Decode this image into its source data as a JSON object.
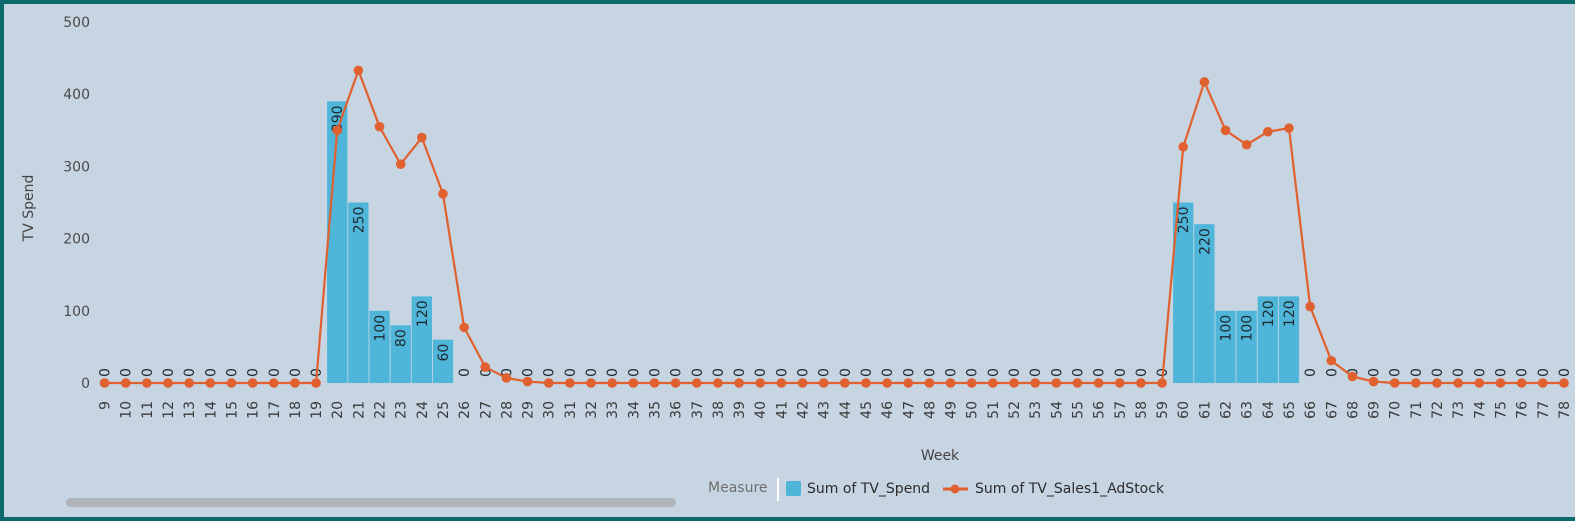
{
  "chart_data": {
    "type": "bar",
    "xlabel": "Week",
    "ylabel": "TV Spend",
    "ylim": [
      0,
      500
    ],
    "yticks": [
      0,
      100,
      200,
      300,
      400,
      500
    ],
    "grid": false,
    "legend_placement": "bottom-center",
    "legend_title": "Measure",
    "categories": [
      "9",
      "10",
      "11",
      "12",
      "13",
      "14",
      "15",
      "16",
      "17",
      "18",
      "19",
      "20",
      "21",
      "22",
      "23",
      "24",
      "25",
      "26",
      "27",
      "28",
      "29",
      "30",
      "31",
      "32",
      "33",
      "34",
      "35",
      "36",
      "37",
      "38",
      "39",
      "40",
      "41",
      "42",
      "43",
      "44",
      "45",
      "46",
      "47",
      "48",
      "49",
      "50",
      "51",
      "52",
      "53",
      "54",
      "55",
      "56",
      "57",
      "58",
      "59",
      "60",
      "61",
      "62",
      "63",
      "64",
      "65",
      "66",
      "67",
      "68",
      "69",
      "70",
      "71",
      "72",
      "73",
      "74",
      "75",
      "76",
      "77",
      "78"
    ],
    "series": [
      {
        "name": "Sum of TV_Spend",
        "type": "bar",
        "color": "#4fb6d9",
        "values": [
          0,
          0,
          0,
          0,
          0,
          0,
          0,
          0,
          0,
          0,
          0,
          390,
          250,
          100,
          80,
          120,
          60,
          0,
          0,
          0,
          0,
          0,
          0,
          0,
          0,
          0,
          0,
          0,
          0,
          0,
          0,
          0,
          0,
          0,
          0,
          0,
          0,
          0,
          0,
          0,
          0,
          0,
          0,
          0,
          0,
          0,
          0,
          0,
          0,
          0,
          0,
          250,
          220,
          100,
          100,
          120,
          120,
          0,
          0,
          0,
          0,
          0,
          0,
          0,
          0,
          0,
          0,
          0,
          0,
          0
        ]
      },
      {
        "name": "Sum of TV_Sales1_AdStock",
        "type": "line",
        "color": "#e1602f",
        "values": [
          0,
          0,
          0,
          0,
          0,
          0,
          0,
          0,
          0,
          0,
          0,
          350,
          433,
          355,
          303,
          340,
          262,
          77,
          22,
          7,
          2,
          0,
          0,
          0,
          0,
          0,
          0,
          0,
          0,
          0,
          0,
          0,
          0,
          0,
          0,
          0,
          0,
          0,
          0,
          0,
          0,
          0,
          0,
          0,
          0,
          0,
          0,
          0,
          0,
          0,
          0,
          327,
          417,
          350,
          330,
          348,
          353,
          106,
          31,
          9,
          2,
          0,
          0,
          0,
          0,
          0,
          0,
          0,
          0,
          0
        ]
      }
    ]
  }
}
